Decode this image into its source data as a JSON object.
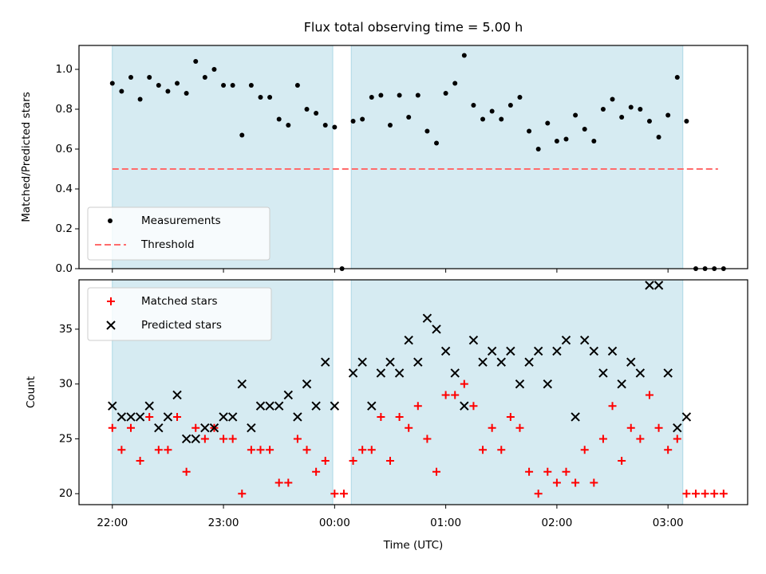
{
  "chart_data": [
    {
      "type": "scatter",
      "title": "Flux total observing time = 5.00 h",
      "ylabel": "Matched/Predicted stars",
      "ylim": [
        0,
        1.12
      ],
      "yticks": [
        "0.0",
        "0.2",
        "0.4",
        "0.6",
        "0.8",
        "1.0"
      ],
      "ytick_values": [
        0,
        0.2,
        0.4,
        0.6,
        0.8,
        1.0
      ],
      "xlim_minutes": [
        -18,
        343
      ],
      "legend": {
        "placement": "lower-left",
        "entries": [
          "Measurements",
          "Threshold"
        ]
      },
      "threshold": {
        "value": 0.5,
        "x_range_minutes": [
          0,
          327
        ],
        "color": "#ff6b6b"
      },
      "observing_windows_minutes": [
        [
          0,
          119
        ],
        [
          129,
          308
        ]
      ],
      "window_color": "#add8e6",
      "series": [
        {
          "name": "Measurements",
          "marker": "dot",
          "color": "#000000",
          "x_minutes": [
            0,
            5,
            10,
            15,
            20,
            25,
            30,
            35,
            40,
            45,
            50,
            55,
            60,
            65,
            70,
            75,
            80,
            85,
            90,
            95,
            100,
            105,
            110,
            115,
            120,
            130,
            135,
            140,
            145,
            150,
            155,
            160,
            165,
            170,
            175,
            180,
            185,
            190,
            195,
            200,
            205,
            210,
            215,
            220,
            225,
            230,
            235,
            240,
            245,
            250,
            255,
            260,
            265,
            270,
            275,
            280,
            285,
            290,
            295,
            300,
            305,
            310,
            315,
            320,
            325
          ],
          "y": [
            0.93,
            0.89,
            0.96,
            0.85,
            0.96,
            0.92,
            0.89,
            0.93,
            0.88,
            1.04,
            0.96,
            1.0,
            0.92,
            0.92,
            0.67,
            0.92,
            0.86,
            0.86,
            0.75,
            0.72,
            0.92,
            0.8,
            0.78,
            0.72,
            0.71,
            0.74,
            0.75,
            0.86,
            0.87,
            0.72,
            0.87,
            0.76,
            0.87,
            0.69,
            0.63,
            0.88,
            0.93,
            1.07,
            0.82,
            0.75,
            0.79,
            0.75,
            0.82,
            0.86,
            0.69,
            0.6,
            0.73,
            0.64,
            0.65,
            0.77,
            0.7,
            0.64,
            0.8,
            0.85,
            0.76,
            0.81,
            0.8,
            0.74,
            0.66,
            0.77,
            0.96,
            0.74,
            0.0,
            0.0,
            0.0
          ],
          "extra_points": [
            {
              "x_minutes": 124,
              "y": 0.0
            },
            {
              "x_minutes": 330,
              "y": 0.0
            }
          ]
        }
      ]
    },
    {
      "type": "scatter",
      "xlabel": "Time (UTC)",
      "ylabel": "Count",
      "ylim": [
        19,
        39.5
      ],
      "yticks": [
        "20",
        "25",
        "30",
        "35"
      ],
      "ytick_values": [
        20,
        25,
        30,
        35
      ],
      "xlim_minutes": [
        -18,
        343
      ],
      "xticks": [
        "22:00",
        "23:00",
        "00:00",
        "01:00",
        "02:00",
        "03:00"
      ],
      "xtick_minutes": [
        0,
        60,
        120,
        180,
        240,
        300
      ],
      "legend": {
        "placement": "top-left",
        "entries": [
          "Matched stars",
          "Predicted stars"
        ]
      },
      "observing_windows_minutes": [
        [
          0,
          119
        ],
        [
          129,
          308
        ]
      ],
      "window_color": "#add8e6",
      "series": [
        {
          "name": "Matched stars",
          "marker": "plus",
          "color": "#ff0000",
          "x_minutes": [
            0,
            5,
            10,
            15,
            20,
            25,
            30,
            35,
            40,
            45,
            50,
            55,
            60,
            65,
            70,
            75,
            80,
            85,
            90,
            95,
            100,
            105,
            110,
            115,
            120,
            125,
            130,
            135,
            140,
            145,
            150,
            155,
            160,
            165,
            170,
            175,
            180,
            185,
            190,
            195,
            200,
            205,
            210,
            215,
            220,
            225,
            230,
            235,
            240,
            245,
            250,
            255,
            260,
            265,
            270,
            275,
            280,
            285,
            290,
            295,
            300,
            305,
            310,
            315,
            320,
            325,
            330
          ],
          "y": [
            26,
            24,
            26,
            23,
            27,
            24,
            24,
            27,
            22,
            26,
            25,
            26,
            25,
            25,
            20,
            24,
            24,
            24,
            21,
            21,
            25,
            24,
            22,
            23,
            20,
            20,
            23,
            24,
            24,
            27,
            23,
            27,
            26,
            28,
            25,
            22,
            29,
            29,
            30,
            28,
            24,
            26,
            24,
            27,
            26,
            22,
            20,
            22,
            21,
            22,
            21,
            24,
            21,
            25,
            28,
            23,
            26,
            25,
            29,
            26,
            24,
            25,
            20,
            20,
            20,
            20,
            20
          ]
        },
        {
          "name": "Predicted stars",
          "marker": "x",
          "color": "#000000",
          "x_minutes": [
            0,
            5,
            10,
            15,
            20,
            25,
            30,
            35,
            40,
            45,
            50,
            55,
            60,
            65,
            70,
            75,
            80,
            85,
            90,
            95,
            100,
            105,
            110,
            115,
            120,
            130,
            135,
            140,
            145,
            150,
            155,
            160,
            165,
            170,
            175,
            180,
            185,
            190,
            195,
            200,
            205,
            210,
            215,
            220,
            225,
            230,
            235,
            240,
            245,
            250,
            255,
            260,
            265,
            270,
            275,
            280,
            285,
            290,
            295,
            300,
            305,
            310
          ],
          "y": [
            28,
            27,
            27,
            27,
            28,
            26,
            27,
            29,
            25,
            25,
            26,
            26,
            27,
            27,
            30,
            26,
            28,
            28,
            28,
            29,
            27,
            30,
            28,
            32,
            28,
            31,
            32,
            28,
            31,
            32,
            31,
            34,
            32,
            36,
            35,
            33,
            31,
            28,
            34,
            32,
            33,
            32,
            33,
            30,
            32,
            33,
            30,
            33,
            34,
            27,
            34,
            33,
            31,
            33,
            30,
            32,
            31,
            39,
            39,
            31,
            26,
            27
          ]
        }
      ]
    }
  ]
}
